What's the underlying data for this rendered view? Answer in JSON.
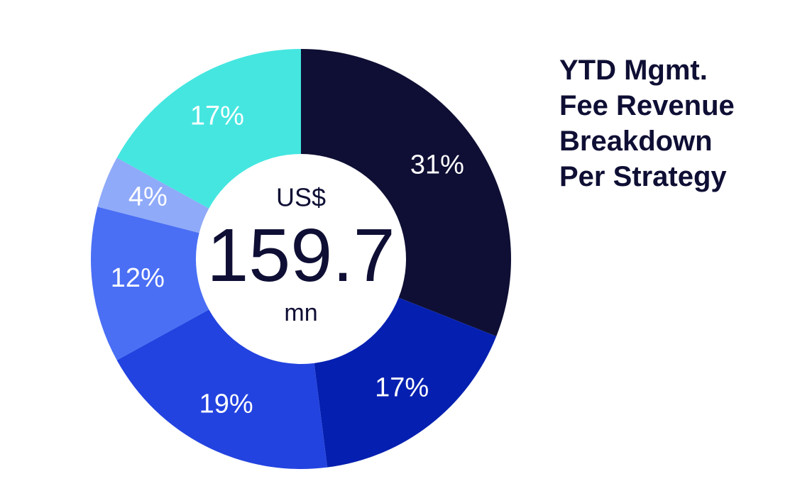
{
  "chart_data": {
    "type": "pie",
    "title": "YTD Mgmt. Fee Revenue Breakdown Per Strategy",
    "values": [
      31,
      17,
      19,
      12,
      4,
      17
    ],
    "value_labels": [
      "31%",
      "17%",
      "19%",
      "12%",
      "4%",
      "17%"
    ],
    "colors": [
      "#0f0f35",
      "#0520b0",
      "#2343e0",
      "#4a6ff5",
      "#8faaf8",
      "#45e6e0"
    ],
    "total_prefix": "US$",
    "total": 159.7,
    "total_unit": "mn"
  }
}
